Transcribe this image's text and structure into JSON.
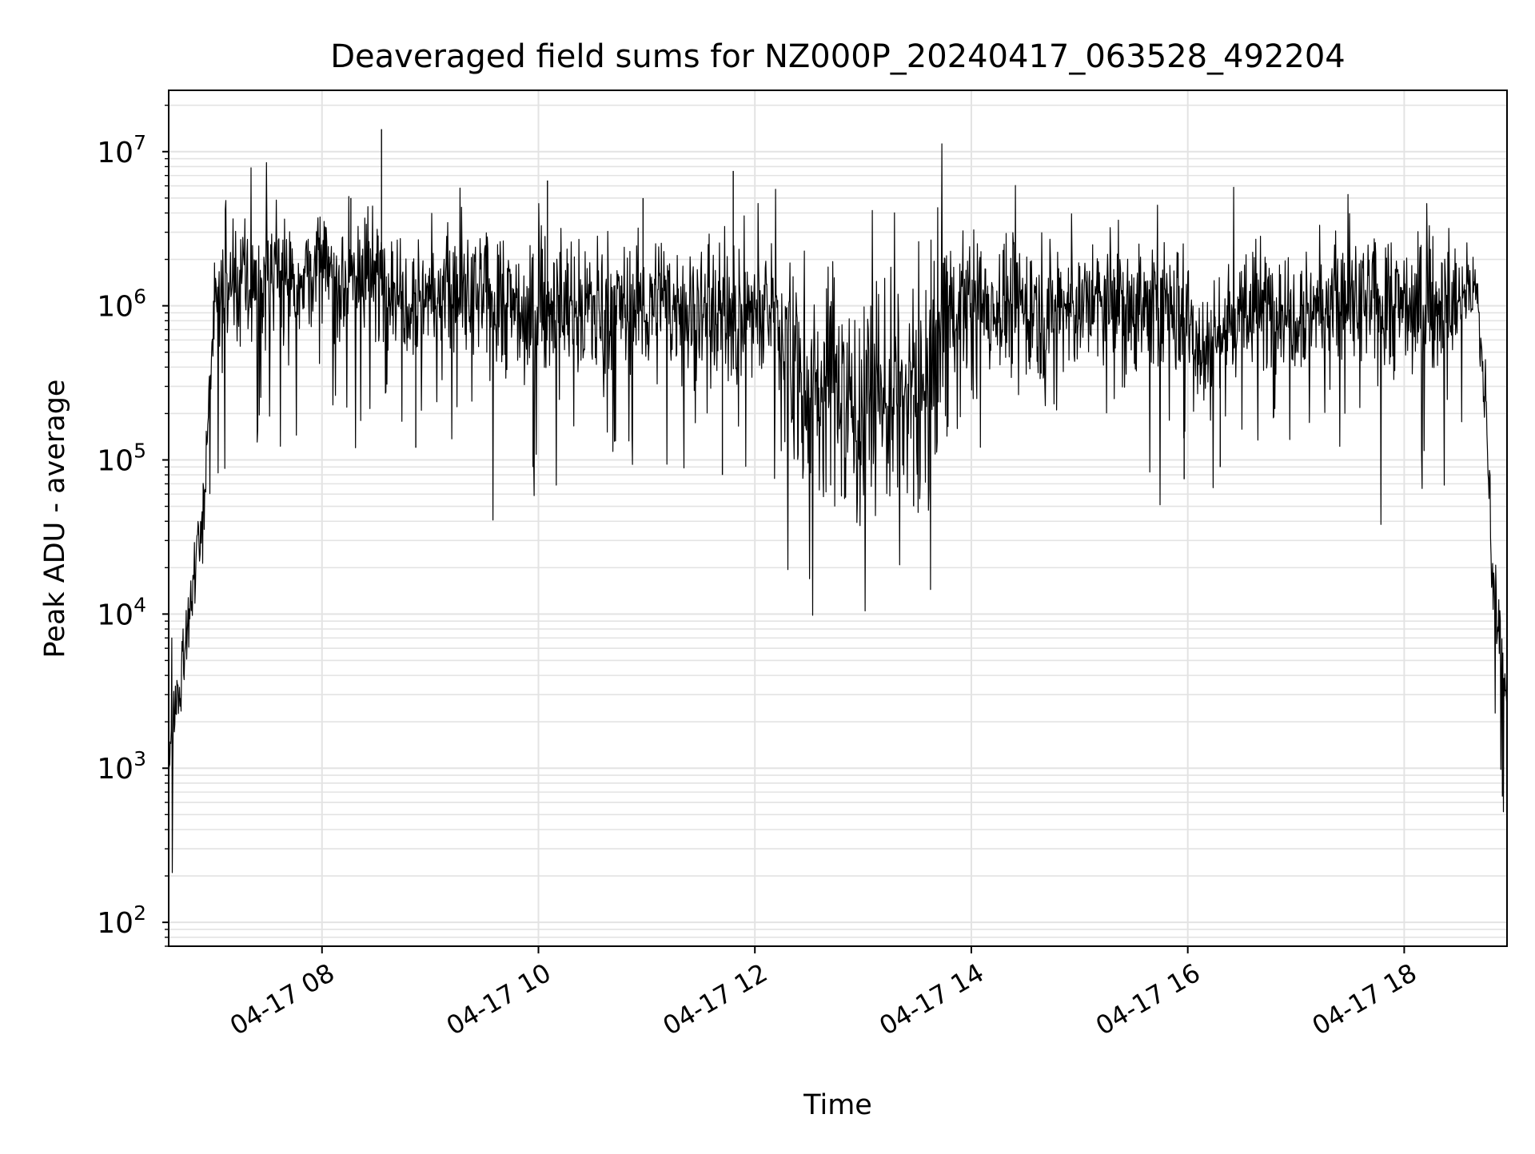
{
  "chart_data": {
    "type": "line",
    "title": "Deaveraged field sums for NZ000P_20240417_063528_492204",
    "xlabel": "Time",
    "ylabel": "Peak ADU - average",
    "yscale": "log",
    "xlim": [
      "2024-04-17 06:35",
      "2024-04-17 18:57"
    ],
    "ylim": [
      70,
      25000000
    ],
    "x_ticks": [
      {
        "value": "2024-04-17 08:00",
        "label": "04-17 08"
      },
      {
        "value": "2024-04-17 10:00",
        "label": "04-17 10"
      },
      {
        "value": "2024-04-17 12:00",
        "label": "04-17 12"
      },
      {
        "value": "2024-04-17 14:00",
        "label": "04-17 14"
      },
      {
        "value": "2024-04-17 16:00",
        "label": "04-17 16"
      },
      {
        "value": "2024-04-17 18:00",
        "label": "04-17 18"
      }
    ],
    "y_ticks": [
      {
        "value": 100,
        "base": "10",
        "exp": "2"
      },
      {
        "value": 1000,
        "base": "10",
        "exp": "3"
      },
      {
        "value": 10000,
        "base": "10",
        "exp": "4"
      },
      {
        "value": 100000,
        "base": "10",
        "exp": "5"
      },
      {
        "value": 1000000,
        "base": "10",
        "exp": "6"
      },
      {
        "value": 10000000,
        "base": "10",
        "exp": "7"
      }
    ],
    "grid": true,
    "line_color": "#000000",
    "grid_color": "#e3e3e3",
    "series": [
      {
        "x": [
          "2024-04-17 06:35",
          "2024-04-17 06:40",
          "2024-04-17 06:45",
          "2024-04-17 06:50",
          "2024-04-17 06:55",
          "2024-04-17 07:00",
          "2024-04-17 07:05",
          "2024-04-17 07:10",
          "2024-04-17 07:20",
          "2024-04-17 07:30",
          "2024-04-17 07:40",
          "2024-04-17 07:50",
          "2024-04-17 08:00",
          "2024-04-17 08:10",
          "2024-04-17 08:20",
          "2024-04-17 08:30",
          "2024-04-17 08:40",
          "2024-04-17 08:45",
          "2024-04-17 08:50",
          "2024-04-17 09:00",
          "2024-04-17 09:15",
          "2024-04-17 09:30",
          "2024-04-17 09:45",
          "2024-04-17 09:55",
          "2024-04-17 10:00",
          "2024-04-17 10:15",
          "2024-04-17 10:30",
          "2024-04-17 10:45",
          "2024-04-17 11:00",
          "2024-04-17 11:15",
          "2024-04-17 11:30",
          "2024-04-17 11:45",
          "2024-04-17 11:48",
          "2024-04-17 12:00",
          "2024-04-17 12:15",
          "2024-04-17 12:25",
          "2024-04-17 12:35",
          "2024-04-17 12:45",
          "2024-04-17 12:55",
          "2024-04-17 13:05",
          "2024-04-17 13:15",
          "2024-04-17 13:25",
          "2024-04-17 13:35",
          "2024-04-17 13:40",
          "2024-04-17 13:45",
          "2024-04-17 14:00",
          "2024-04-17 14:15",
          "2024-04-17 14:30",
          "2024-04-17 14:45",
          "2024-04-17 15:00",
          "2024-04-17 15:15",
          "2024-04-17 15:30",
          "2024-04-17 15:45",
          "2024-04-17 15:55",
          "2024-04-17 16:00",
          "2024-04-17 16:10",
          "2024-04-17 16:20",
          "2024-04-17 16:30",
          "2024-04-17 16:45",
          "2024-04-17 17:00",
          "2024-04-17 17:15",
          "2024-04-17 17:30",
          "2024-04-17 17:45",
          "2024-04-17 18:00",
          "2024-04-17 18:15",
          "2024-04-17 18:30",
          "2024-04-17 18:35",
          "2024-04-17 18:40",
          "2024-04-17 18:45",
          "2024-04-17 18:48",
          "2024-04-17 18:50",
          "2024-04-17 18:53",
          "2024-04-17 18:57"
        ],
        "values": [
          1000,
          3000,
          8000,
          20000,
          60000,
          1000000,
          1200000,
          1300000,
          1400000,
          1500000,
          1500000,
          1600000,
          1600000,
          1500000,
          1600000,
          1500000,
          1400000,
          1300000,
          1200000,
          1200000,
          1100000,
          1100000,
          1000000,
          800000,
          1000000,
          1000000,
          950000,
          1000000,
          1000000,
          950000,
          950000,
          900000,
          900000,
          900000,
          850000,
          300000,
          250000,
          400000,
          200000,
          300000,
          250000,
          250000,
          300000,
          500000,
          1000000,
          1000000,
          1000000,
          1000000,
          1000000,
          1000000,
          1000000,
          1000000,
          950000,
          900000,
          800000,
          500000,
          700000,
          900000,
          1000000,
          1000000,
          1000000,
          1000000,
          1000000,
          1000000,
          1000000,
          1000000,
          1500000,
          1200000,
          250000,
          40000,
          12000,
          9000,
          2000
        ],
        "peaks": [
          {
            "x": "2024-04-17 08:33",
            "value": 14000000
          },
          {
            "x": "2024-04-17 11:48",
            "value": 7500000
          },
          {
            "x": "2024-04-17 10:05",
            "value": 6500000
          },
          {
            "x": "2024-04-17 10:58",
            "value": 5000000
          },
          {
            "x": "2024-04-17 08:16",
            "value": 5000000
          },
          {
            "x": "2024-04-17 08:52",
            "value": 120000
          },
          {
            "x": "2024-04-17 09:57",
            "value": 90000
          },
          {
            "x": "2024-04-17 11:42",
            "value": 80000
          },
          {
            "x": "2024-04-17 13:28",
            "value": 50000
          },
          {
            "x": "2024-04-17 15:58",
            "value": 75000
          },
          {
            "x": "2024-04-17 16:18",
            "value": 90000
          }
        ]
      }
    ]
  }
}
